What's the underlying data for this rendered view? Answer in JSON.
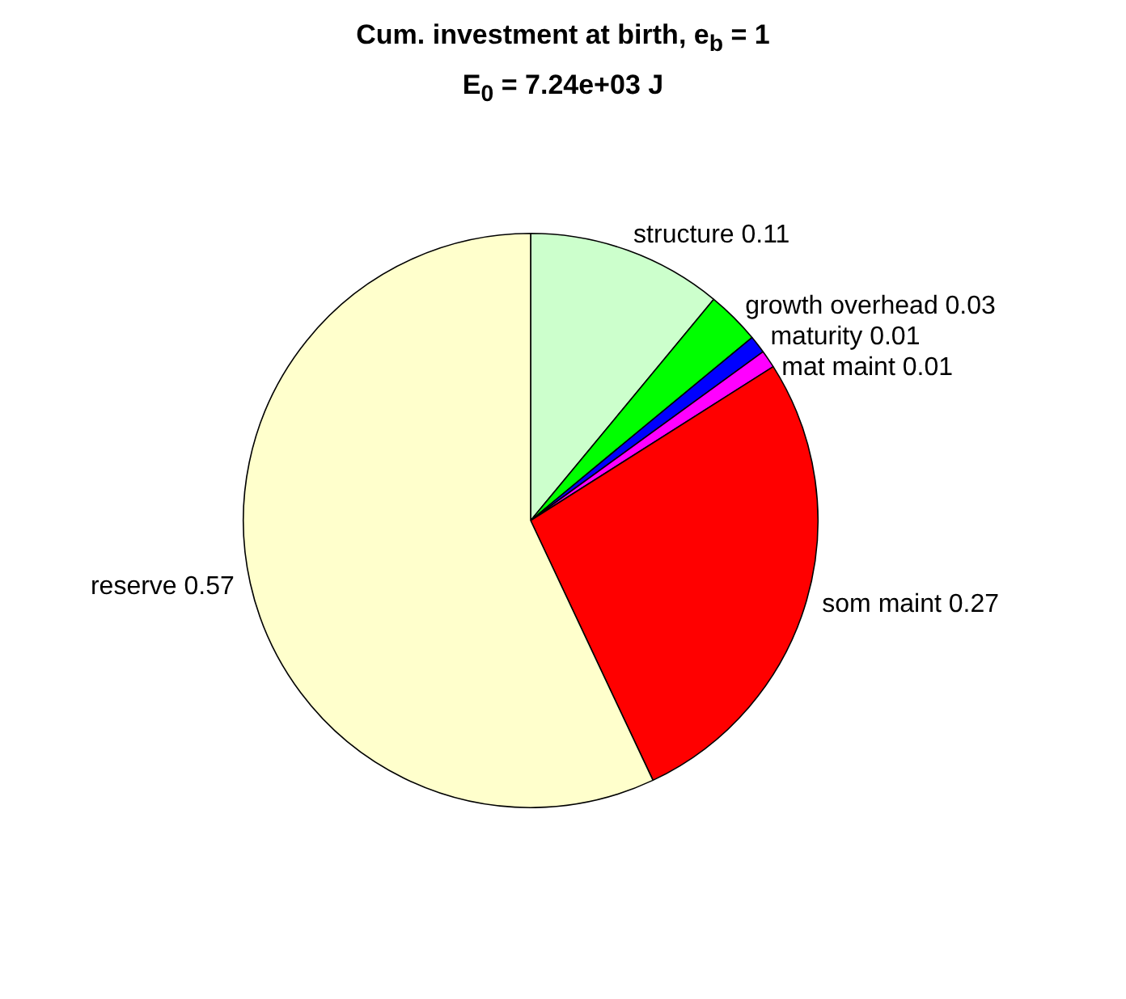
{
  "chart_data": {
    "type": "pie",
    "title": "Cum. investment at birth, e$_{b}$ = 1",
    "subtitle": "E$_{0}$ = 7.24e+03 J",
    "categories": [
      "structure 0.11",
      "growth overhead 0.03",
      "maturity 0.01",
      "mat maint 0.01",
      "som maint 0.27",
      "reserve 0.57"
    ],
    "values": [
      0.11,
      0.03,
      0.01,
      0.01,
      0.27,
      0.57
    ],
    "colors": [
      "#ccffcc",
      "#00ff00",
      "#0000ff",
      "#ff00ff",
      "#ff0000",
      "#ffffcc"
    ],
    "legend": false
  }
}
